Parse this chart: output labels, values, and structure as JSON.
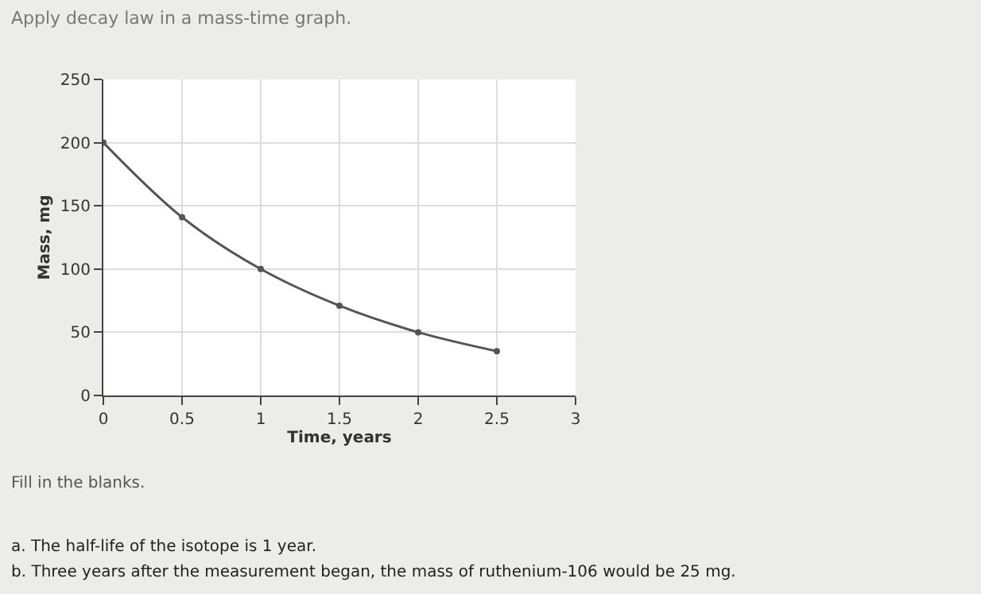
{
  "chart_data": {
    "type": "line",
    "title": "Apply decay law in a mass-time graph.",
    "xlabel": "Time, years",
    "ylabel": "Mass, mg",
    "x": [
      0,
      0.5,
      1,
      1.5,
      2,
      2.5
    ],
    "series": [
      {
        "color": "#555555",
        "values": [
          200,
          141,
          100,
          71,
          50,
          35
        ]
      }
    ],
    "xlim": [
      0,
      3
    ],
    "xticks": [
      0,
      0.5,
      1,
      1.5,
      2,
      2.5,
      3
    ],
    "ylim": [
      0,
      250
    ],
    "yticks": [
      0,
      50,
      100,
      150,
      200,
      250
    ],
    "grid": true,
    "marker": "circle",
    "line_style": "solid",
    "annotations": [
      "Fill in the blanks.",
      "a. The half-life of the isotope is 1 year.",
      "b. Three years after the measurement began, the mass of ruthenium-106 would be 25 mg."
    ]
  }
}
